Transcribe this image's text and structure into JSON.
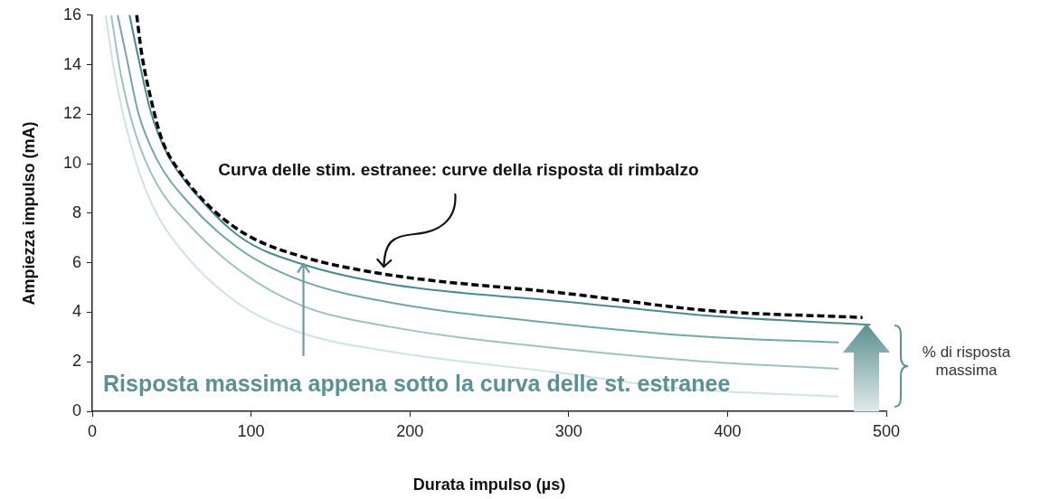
{
  "chart_data": {
    "type": "line",
    "xlabel": "Durata impulso (µs)",
    "ylabel": "Ampiezza impulso (mA)",
    "xlim": [
      0,
      500
    ],
    "ylim": [
      0,
      16
    ],
    "xticks": [
      0,
      100,
      200,
      300,
      400,
      500
    ],
    "yticks": [
      0,
      2,
      4,
      6,
      8,
      10,
      12,
      14,
      16
    ],
    "grid": false,
    "marker": "none",
    "series": [
      {
        "color": "#000000",
        "line_style": "dashed",
        "x": [
          28,
          31,
          37,
          44,
          56,
          75,
          98,
          132,
          183,
          300,
          388,
          485
        ],
        "values": [
          16,
          14.5,
          12.6,
          10.95,
          9.6,
          8.2,
          7.1,
          6.25,
          5.55,
          4.75,
          4.07,
          3.79
        ]
      },
      {
        "color": "#4a8a8c",
        "line_style": "solid",
        "x": [
          23.5,
          29,
          37,
          48,
          65,
          94,
          132,
          188,
          300,
          388,
          490
        ],
        "values": [
          16,
          14.3,
          12.06,
          10.3,
          8.8,
          7.0,
          5.95,
          5.13,
          4.42,
          3.86,
          3.5
        ]
      },
      {
        "color": "#72a6a7",
        "line_style": "solid",
        "x": [
          16,
          21.6,
          29,
          40.5,
          60,
          94,
          132,
          188,
          300,
          388,
          470
        ],
        "values": [
          16,
          14.3,
          12.06,
          10.2,
          8.47,
          6.5,
          5.27,
          4.39,
          3.5,
          3.0,
          2.78
        ]
      },
      {
        "color": "#9cc2c2",
        "line_style": "solid",
        "x": [
          12,
          17.7,
          27.3,
          40.5,
          61.5,
          94,
          132,
          188,
          300,
          388,
          470
        ],
        "values": [
          16,
          13.7,
          11.2,
          9.2,
          7.5,
          5.63,
          4.27,
          3.41,
          2.5,
          2.0,
          1.72
        ]
      },
      {
        "color": "#cfe3e3",
        "line_style": "solid",
        "x": [
          8.4,
          14,
          23.5,
          36.8,
          59.6,
          94,
          132,
          188,
          300,
          366,
          470
        ],
        "values": [
          16,
          13.7,
          10.95,
          8.47,
          6.25,
          4.27,
          3.16,
          2.41,
          1.51,
          0.95,
          0.59
        ]
      }
    ],
    "annotations": [
      {
        "text": "Curva delle stim. estranee: curve della risposta di rimbalzo",
        "x": 183,
        "y": 5.55
      },
      {
        "text": "Risposta massima appena sotto la curva delle st. estranee",
        "x": 133,
        "y": 6.1
      },
      "% di risposta massima"
    ]
  }
}
